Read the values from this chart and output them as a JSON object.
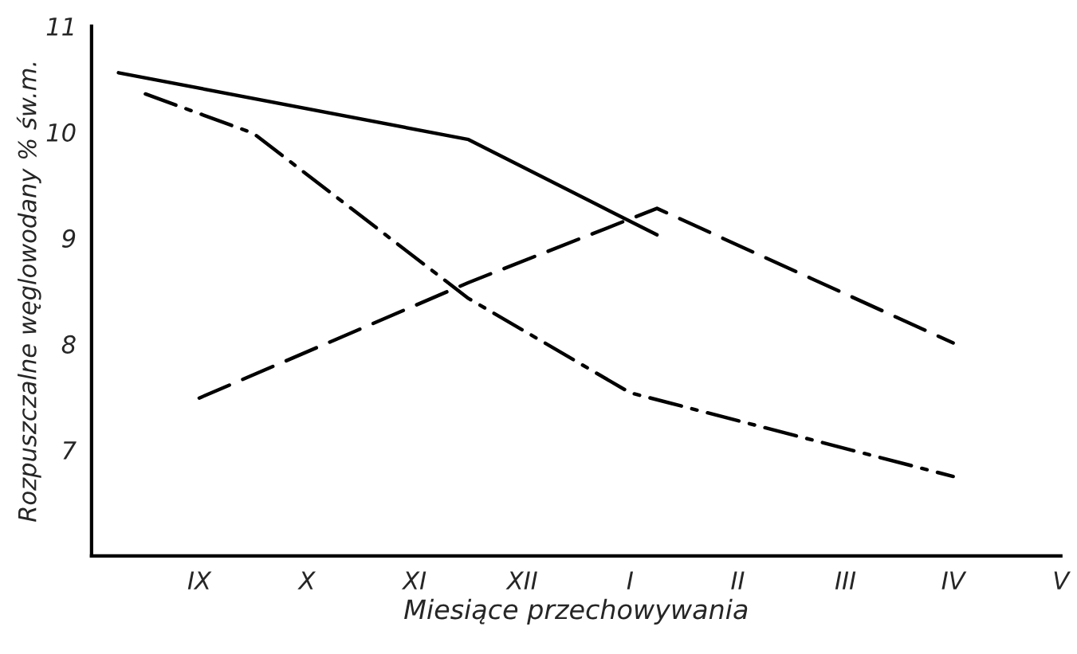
{
  "chart_data": {
    "type": "line",
    "xlabel": "Miesiące przechowywania",
    "ylabel": "Rozpuszczalne węglowodany % św.m.",
    "ylim": [
      6,
      11
    ],
    "categories": [
      null,
      null,
      null,
      null,
      "IX",
      null,
      null,
      null,
      "X",
      null,
      null,
      null,
      "XI",
      null,
      null,
      null,
      "XII",
      null,
      null,
      null,
      "I",
      null,
      null,
      null,
      "II",
      null,
      null,
      null,
      "III",
      null,
      null,
      null,
      "IV",
      null,
      null,
      null,
      "V"
    ],
    "yticks": [
      7,
      8,
      9,
      10,
      11
    ],
    "grid": false,
    "marker": "none",
    "series": [
      {
        "color": "#000000",
        "line_style": "solid",
        "values": [
          null,
          10.56,
          null,
          null,
          null,
          null,
          null,
          null,
          null,
          null,
          null,
          null,
          null,
          null,
          9.93,
          null,
          null,
          null,
          null,
          null,
          null,
          9.03,
          null,
          null,
          null,
          null,
          null,
          null,
          null,
          null,
          null,
          null,
          null,
          null,
          null,
          null,
          null
        ]
      },
      {
        "color": "#000000",
        "line_style": "dashdot",
        "values": [
          null,
          null,
          10.36,
          null,
          null,
          null,
          9.99,
          null,
          null,
          null,
          null,
          null,
          null,
          null,
          8.43,
          null,
          null,
          null,
          null,
          null,
          7.54,
          null,
          null,
          null,
          null,
          null,
          null,
          null,
          null,
          null,
          null,
          null,
          6.75,
          null,
          null,
          null,
          null
        ]
      },
      {
        "color": "#000000",
        "line_style": "dashed",
        "values": [
          null,
          null,
          null,
          null,
          7.49,
          null,
          null,
          null,
          null,
          null,
          null,
          null,
          null,
          null,
          8.58,
          null,
          null,
          null,
          null,
          null,
          null,
          9.28,
          null,
          null,
          null,
          null,
          null,
          null,
          null,
          null,
          null,
          null,
          8.01,
          null,
          null,
          null,
          null
        ]
      }
    ]
  }
}
